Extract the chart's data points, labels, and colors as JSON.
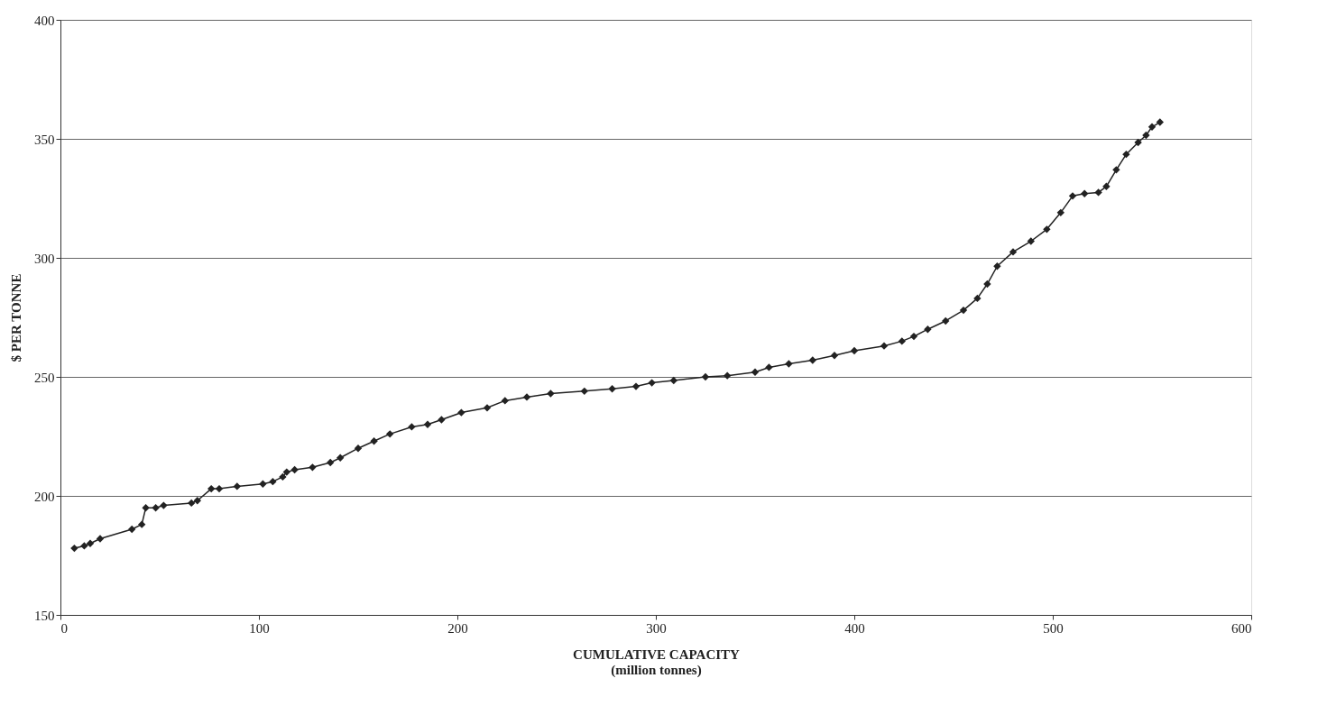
{
  "chart_data": {
    "type": "line",
    "xlabel": "CUMULATIVE CAPACITY\n(million tonnes)",
    "ylabel": "$ PER TONNE",
    "xlim": [
      0,
      600
    ],
    "xticks": [
      0,
      100,
      200,
      300,
      400,
      500,
      600
    ],
    "ylim": [
      150,
      400
    ],
    "yticks": [
      150,
      200,
      250,
      300,
      350,
      400
    ],
    "grid": "y",
    "marker": "diamond",
    "line_style": "solid",
    "x": [
      7,
      12,
      15,
      20,
      36,
      41,
      43,
      48,
      52,
      66,
      69,
      76,
      80,
      89,
      102,
      107,
      112,
      114,
      118,
      127,
      136,
      141,
      150,
      158,
      166,
      177,
      185,
      192,
      202,
      215,
      224,
      235,
      247,
      264,
      278,
      290,
      298,
      309,
      325,
      336,
      350,
      357,
      367,
      379,
      390,
      400,
      415,
      424,
      430,
      437,
      446,
      455,
      462,
      467,
      472,
      480,
      489,
      497,
      504,
      510,
      516,
      523,
      527,
      532,
      537,
      543,
      547,
      550,
      554
    ],
    "series": [
      {
        "color": "#222222",
        "values": [
          178,
          179,
          180,
          182,
          186,
          188,
          195,
          195,
          196,
          197,
          198,
          203,
          203,
          204,
          205,
          206,
          208,
          210,
          211,
          212,
          214,
          216,
          220,
          223,
          226,
          229,
          230,
          232,
          235,
          237,
          240,
          241.5,
          243,
          244,
          245,
          246,
          247.5,
          248.5,
          250,
          250.5,
          252,
          254,
          255.5,
          257,
          259,
          261,
          263,
          265,
          267,
          270,
          273.5,
          278,
          283,
          289,
          296.5,
          302.5,
          307,
          312,
          319,
          326,
          327,
          327.5,
          330,
          337,
          343.5,
          348.5,
          351.5,
          355,
          357
        ]
      }
    ]
  }
}
